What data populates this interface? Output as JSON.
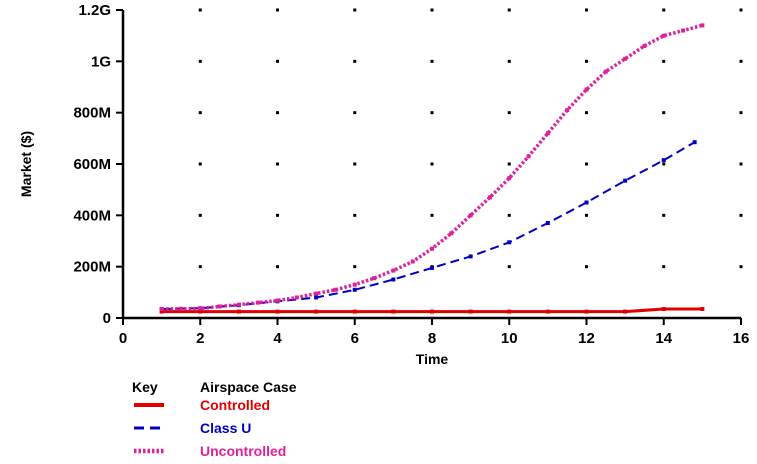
{
  "chart_data": {
    "type": "line",
    "xlabel": "Time",
    "ylabel": "Market ($)",
    "xlim": [
      0,
      16
    ],
    "ylim": [
      0,
      1200000000
    ],
    "x_ticks": [
      0,
      2,
      4,
      6,
      8,
      10,
      12,
      14,
      16
    ],
    "y_ticks": [
      0,
      200000000,
      400000000,
      600000000,
      800000000,
      1000000000,
      1200000000
    ],
    "y_tick_labels": [
      "0",
      "200M",
      "400M",
      "600M",
      "800M",
      "1G",
      "1.2G"
    ],
    "grid": "dots",
    "legend": {
      "key_header": "Key",
      "case_header": "Airspace Case",
      "placement": "bottom-left"
    },
    "series": [
      {
        "name": "Controlled",
        "color": "#e00000",
        "style": "solid",
        "x": [
          1,
          2,
          3,
          4,
          5,
          6,
          7,
          8,
          9,
          10,
          11,
          12,
          13,
          14,
          15
        ],
        "y": [
          25000000,
          25000000,
          25000000,
          25000000,
          25000000,
          25000000,
          25000000,
          25000000,
          25000000,
          25000000,
          25000000,
          25000000,
          25000000,
          35000000,
          35000000
        ]
      },
      {
        "name": "Class U",
        "color": "#0000c0",
        "style": "dashed",
        "x": [
          1,
          2,
          3,
          4,
          5,
          6,
          7,
          8,
          9,
          10,
          11,
          12,
          13,
          14,
          14.8
        ],
        "y": [
          35000000,
          38000000,
          50000000,
          65000000,
          80000000,
          110000000,
          150000000,
          195000000,
          240000000,
          295000000,
          370000000,
          450000000,
          535000000,
          615000000,
          685000000
        ]
      },
      {
        "name": "Uncontrolled",
        "color": "#e0209a",
        "style": "dotted",
        "x": [
          1,
          1.5,
          2,
          2.5,
          3,
          3.5,
          4,
          4.5,
          5,
          5.5,
          6,
          6.5,
          7,
          7.5,
          8,
          8.5,
          9,
          9.5,
          10,
          10.5,
          11,
          11.5,
          12,
          12.5,
          13,
          13.5,
          14,
          14.5,
          15
        ],
        "y": [
          35000000,
          36000000,
          37000000,
          45000000,
          52000000,
          60000000,
          68000000,
          80000000,
          95000000,
          110000000,
          130000000,
          155000000,
          185000000,
          220000000,
          270000000,
          330000000,
          400000000,
          470000000,
          545000000,
          630000000,
          720000000,
          810000000,
          890000000,
          960000000,
          1010000000,
          1060000000,
          1100000000,
          1120000000,
          1140000000
        ]
      }
    ]
  }
}
